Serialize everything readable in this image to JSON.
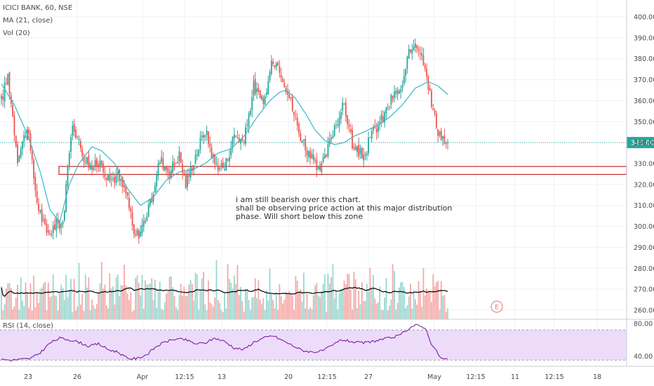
{
  "legend": {
    "symbol": "ICICI BANK, 60, NSE",
    "ma": "MA (21, close)",
    "vol": "Vol (20)",
    "rsi": "RSI (14, close)"
  },
  "annotation": {
    "lines": [
      "i am still bearish over this chart.",
      "shall be observing price action at this major distribution",
      "phase. Will short below this zone"
    ]
  },
  "earnings_marker": "E",
  "colors": {
    "up": "#26a69a",
    "down": "#ef5350",
    "ma": "#3bb6c9",
    "volume_ma": "#000000",
    "zone": "#c62828",
    "rsi_line": "#7b1fa2",
    "rsi_band": "#ecdcfa",
    "price_line": "#26a69a"
  },
  "chart_data": [
    {
      "type": "candlestick",
      "title": "ICICI BANK, 60, NSE",
      "ylim": [
        255,
        405
      ],
      "y_ticks": [
        260,
        270,
        280,
        290,
        300,
        310,
        320,
        330,
        340,
        350,
        360,
        370,
        380,
        390,
        400
      ],
      "x_tick_labels": [
        "23",
        "26",
        "Apr",
        "12:15",
        "13",
        "20",
        "12:15",
        "27",
        "May",
        "12:15",
        "11",
        "12:15",
        "18"
      ],
      "last_price": "340.00",
      "last_price_value": 340,
      "resistance_zone": [
        324.8,
        328.6
      ],
      "ma_label": "MA (21, close)",
      "ohlc_anchors": [
        [
          0,
          360
        ],
        [
          4,
          372
        ],
        [
          10,
          333
        ],
        [
          16,
          347
        ],
        [
          22,
          312
        ],
        [
          28,
          296
        ],
        [
          34,
          301
        ],
        [
          38,
          302
        ],
        [
          44,
          350
        ],
        [
          50,
          335
        ],
        [
          56,
          328
        ],
        [
          62,
          331
        ],
        [
          66,
          322
        ],
        [
          72,
          324
        ],
        [
          78,
          314
        ],
        [
          82,
          295
        ],
        [
          86,
          298
        ],
        [
          92,
          310
        ],
        [
          98,
          332
        ],
        [
          104,
          326
        ],
        [
          110,
          334
        ],
        [
          114,
          320
        ],
        [
          120,
          334
        ],
        [
          126,
          346
        ],
        [
          132,
          330
        ],
        [
          138,
          328
        ],
        [
          144,
          344
        ],
        [
          150,
          340
        ],
        [
          156,
          367
        ],
        [
          162,
          358
        ],
        [
          168,
          380
        ],
        [
          172,
          376
        ],
        [
          178,
          362
        ],
        [
          184,
          345
        ],
        [
          190,
          335
        ],
        [
          196,
          326
        ],
        [
          200,
          332
        ],
        [
          206,
          348
        ],
        [
          212,
          358
        ],
        [
          218,
          336
        ],
        [
          224,
          334
        ],
        [
          230,
          345
        ],
        [
          236,
          352
        ],
        [
          242,
          362
        ],
        [
          248,
          366
        ],
        [
          252,
          382
        ],
        [
          256,
          389
        ],
        [
          262,
          378
        ],
        [
          266,
          358
        ],
        [
          270,
          346
        ],
        [
          276,
          338
        ]
      ],
      "ma_anchors": [
        [
          0,
          368
        ],
        [
          8,
          358
        ],
        [
          16,
          344
        ],
        [
          24,
          326
        ],
        [
          30,
          308
        ],
        [
          36,
          302
        ],
        [
          42,
          320
        ],
        [
          48,
          330
        ],
        [
          56,
          338
        ],
        [
          62,
          336
        ],
        [
          70,
          330
        ],
        [
          78,
          318
        ],
        [
          86,
          310
        ],
        [
          94,
          314
        ],
        [
          102,
          322
        ],
        [
          110,
          326
        ],
        [
          118,
          327
        ],
        [
          126,
          330
        ],
        [
          134,
          335
        ],
        [
          142,
          337
        ],
        [
          150,
          343
        ],
        [
          158,
          352
        ],
        [
          166,
          360
        ],
        [
          172,
          364
        ],
        [
          176,
          365
        ],
        [
          182,
          361
        ],
        [
          188,
          354
        ],
        [
          194,
          346
        ],
        [
          200,
          341
        ],
        [
          206,
          339
        ],
        [
          212,
          340
        ],
        [
          218,
          343
        ],
        [
          224,
          345
        ],
        [
          232,
          348
        ],
        [
          240,
          352
        ],
        [
          248,
          358
        ],
        [
          256,
          366
        ],
        [
          264,
          369
        ],
        [
          270,
          367
        ],
        [
          276,
          363
        ]
      ]
    },
    {
      "type": "bar",
      "title": "Vol (20)",
      "ma_label": "Vol (20)"
    },
    {
      "type": "line",
      "title": "RSI (14, close)",
      "ylim": [
        30,
        85
      ],
      "y_ticks": [
        40,
        80
      ],
      "band": [
        30,
        70
      ],
      "rsi_anchors": [
        [
          0,
          36
        ],
        [
          6,
          35
        ],
        [
          12,
          36
        ],
        [
          18,
          37
        ],
        [
          24,
          44
        ],
        [
          30,
          56
        ],
        [
          36,
          62
        ],
        [
          42,
          60
        ],
        [
          48,
          57
        ],
        [
          54,
          52
        ],
        [
          60,
          55
        ],
        [
          66,
          48
        ],
        [
          72,
          45
        ],
        [
          78,
          37
        ],
        [
          84,
          37
        ],
        [
          90,
          42
        ],
        [
          96,
          52
        ],
        [
          102,
          58
        ],
        [
          108,
          61
        ],
        [
          114,
          60
        ],
        [
          120,
          55
        ],
        [
          126,
          56
        ],
        [
          132,
          62
        ],
        [
          138,
          58
        ],
        [
          144,
          50
        ],
        [
          150,
          48
        ],
        [
          156,
          57
        ],
        [
          162,
          62
        ],
        [
          168,
          65
        ],
        [
          174,
          59
        ],
        [
          180,
          53
        ],
        [
          186,
          47
        ],
        [
          192,
          45
        ],
        [
          198,
          46
        ],
        [
          204,
          52
        ],
        [
          210,
          60
        ],
        [
          216,
          58
        ],
        [
          222,
          56
        ],
        [
          228,
          57
        ],
        [
          234,
          60
        ],
        [
          240,
          62
        ],
        [
          246,
          65
        ],
        [
          252,
          74
        ],
        [
          256,
          78
        ],
        [
          262,
          75
        ],
        [
          266,
          55
        ],
        [
          272,
          37
        ],
        [
          276,
          36
        ]
      ]
    }
  ]
}
